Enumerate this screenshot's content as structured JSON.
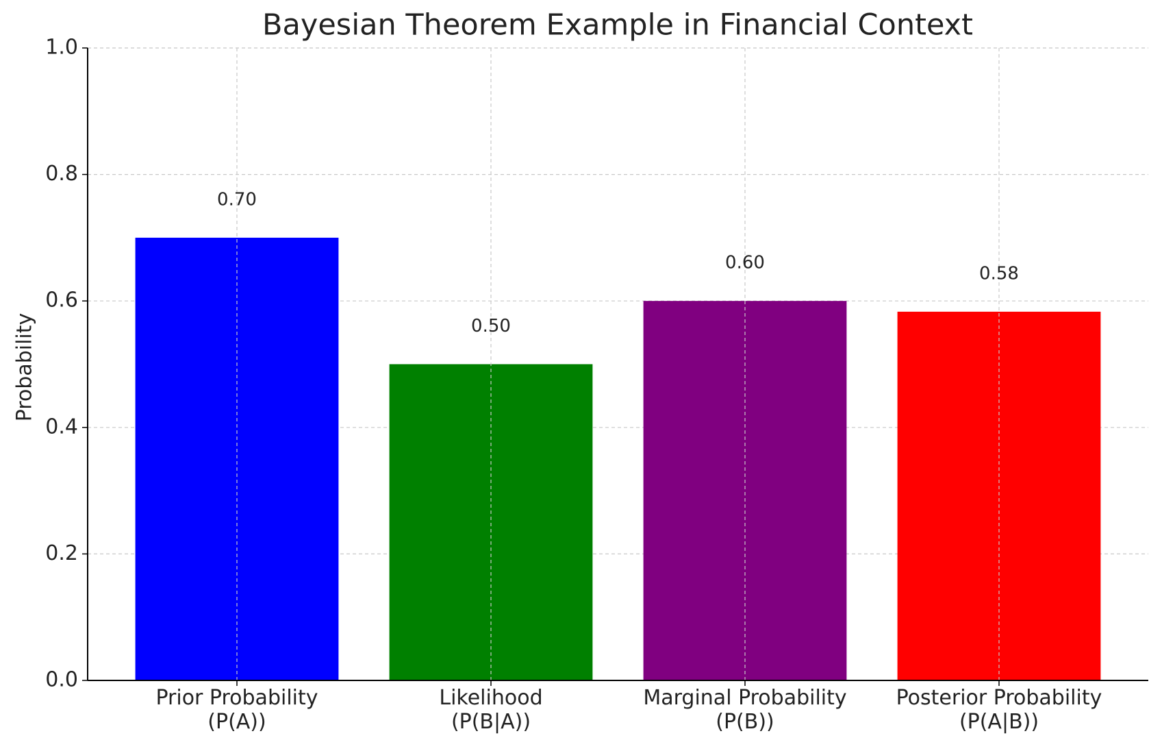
{
  "chart_data": {
    "type": "bar",
    "title": "Bayesian Theorem Example in Financial Context",
    "y_label": "Probability",
    "categories": [
      "Prior Probability\n(P(A))",
      "Likelihood\n(P(B|A))",
      "Marginal Probability\n(P(B))",
      "Posterior Probability\n(P(A|B))"
    ],
    "values": [
      0.7,
      0.5,
      0.6,
      0.583
    ],
    "value_labels": [
      "0.70",
      "0.50",
      "0.60",
      "0.58"
    ],
    "colors": [
      "#0000ff",
      "#008000",
      "#800080",
      "#ff0000"
    ],
    "ylim": [
      0,
      1
    ],
    "yticks": [
      {
        "value": 0,
        "label": "0.0"
      },
      {
        "value": 0.2,
        "label": "0.2"
      },
      {
        "value": 0.4,
        "label": "0.4"
      },
      {
        "value": 0.6,
        "label": "0.6"
      },
      {
        "value": 0.8,
        "label": "0.8"
      },
      {
        "value": 1,
        "label": "1.0"
      }
    ],
    "grid": true
  }
}
